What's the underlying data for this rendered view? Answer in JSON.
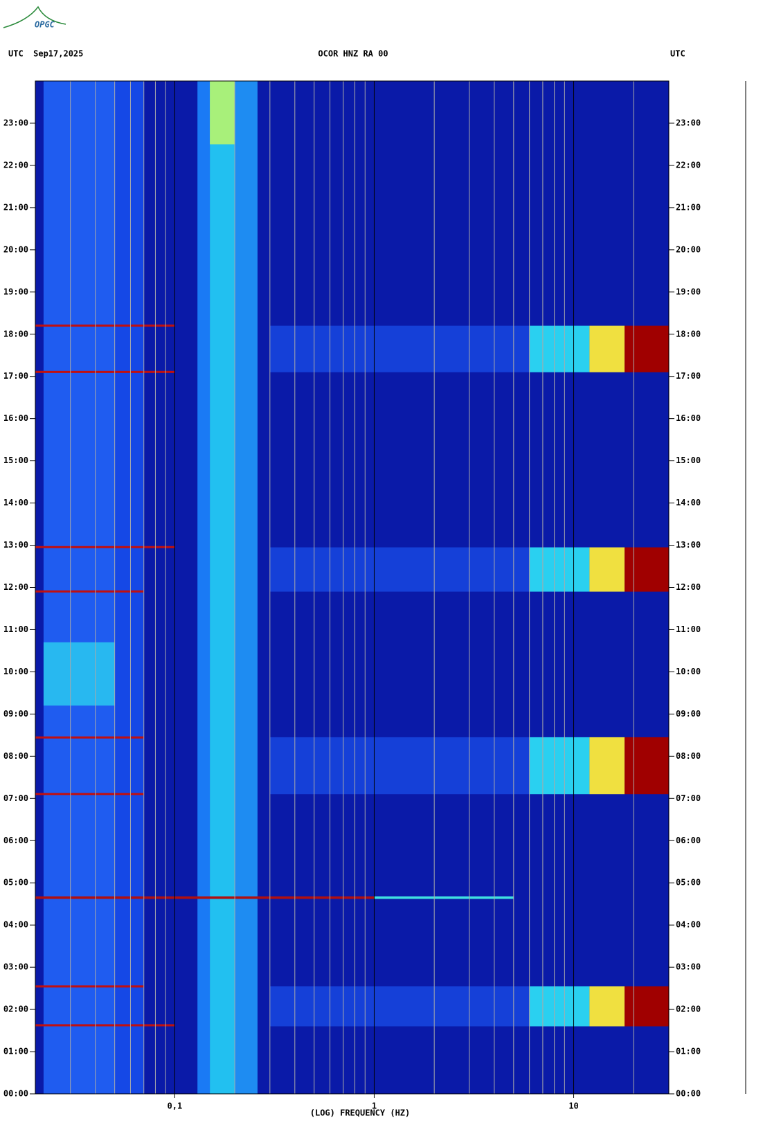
{
  "logo": "OPGC",
  "chart_data": {
    "type": "spectrogram",
    "title": "OCOR HNZ RA 00",
    "left_label": "UTC  Sep17,2025",
    "right_label": "UTC",
    "x_label": "(LOG) FREQUENCY (HZ)",
    "x_log": true,
    "xlim": [
      0.02,
      30
    ],
    "xticks": [
      {
        "value": 0.1,
        "label": "0,1"
      },
      1,
      10
    ],
    "x_minor_ticks": [
      0.03,
      0.04,
      0.05,
      0.06,
      0.07,
      0.08,
      0.09,
      0.2,
      0.3,
      0.4,
      0.5,
      0.6,
      0.7,
      0.8,
      0.9,
      2,
      3,
      4,
      5,
      6,
      7,
      8,
      9,
      20
    ],
    "ylim": [
      0,
      24
    ],
    "yticks": [
      {
        "value": 0,
        "label": "00:00"
      },
      {
        "value": 1,
        "label": "01:00"
      },
      {
        "value": 2,
        "label": "02:00"
      },
      {
        "value": 3,
        "label": "03:00"
      },
      {
        "value": 4,
        "label": "04:00"
      },
      {
        "value": 5,
        "label": "05:00"
      },
      {
        "value": 6,
        "label": "06:00"
      },
      {
        "value": 7,
        "label": "07:00"
      },
      {
        "value": 8,
        "label": "08:00"
      },
      {
        "value": 9,
        "label": "09:00"
      },
      {
        "value": 10,
        "label": "10:00"
      },
      {
        "value": 11,
        "label": "11:00"
      },
      {
        "value": 12,
        "label": "12:00"
      },
      {
        "value": 13,
        "label": "13:00"
      },
      {
        "value": 14,
        "label": "14:00"
      },
      {
        "value": 15,
        "label": "15:00"
      },
      {
        "value": 16,
        "label": "16:00"
      },
      {
        "value": 17,
        "label": "17:00"
      },
      {
        "value": 18,
        "label": "18:00"
      },
      {
        "value": 19,
        "label": "19:00"
      },
      {
        "value": 20,
        "label": "20:00"
      },
      {
        "value": 21,
        "label": "21:00"
      },
      {
        "value": 22,
        "label": "22:00"
      },
      {
        "value": 23,
        "label": "23:00"
      }
    ],
    "background": "#0a1aa8",
    "regions": [
      {
        "x": [
          0.022,
          0.05
        ],
        "y": [
          0,
          24
        ],
        "color": "#1f5cf0"
      },
      {
        "x": [
          0.05,
          0.07
        ],
        "y": [
          0,
          24
        ],
        "color": "#1548e6"
      },
      {
        "x": [
          0.022,
          0.05
        ],
        "y": [
          9.2,
          10.7
        ],
        "color": "#28b8f0"
      },
      {
        "x": [
          0.13,
          0.15
        ],
        "y": [
          0,
          24
        ],
        "color": "#1a7af5"
      },
      {
        "x": [
          0.15,
          0.2
        ],
        "y": [
          0,
          24
        ],
        "color": "#22c0f0"
      },
      {
        "x": [
          0.2,
          0.26
        ],
        "y": [
          0,
          24
        ],
        "color": "#1e8cf2"
      },
      {
        "x": [
          0.15,
          0.2
        ],
        "y": [
          22.5,
          24
        ],
        "color": "#a8f07a"
      },
      {
        "x": [
          0.3,
          6
        ],
        "y": [
          1.6,
          2.55
        ],
        "color": "#1540d8"
      },
      {
        "x": [
          6,
          12
        ],
        "y": [
          1.6,
          2.55
        ],
        "color": "#2ad0f0"
      },
      {
        "x": [
          12,
          18
        ],
        "y": [
          1.6,
          2.55
        ],
        "color": "#f0e040"
      },
      {
        "x": [
          18,
          30
        ],
        "y": [
          1.6,
          2.55
        ],
        "color": "#a00000"
      },
      {
        "x": [
          0.3,
          6
        ],
        "y": [
          7.1,
          8.45
        ],
        "color": "#1540d8"
      },
      {
        "x": [
          6,
          12
        ],
        "y": [
          7.1,
          8.45
        ],
        "color": "#2ad0f0"
      },
      {
        "x": [
          12,
          18
        ],
        "y": [
          7.1,
          8.45
        ],
        "color": "#f0e040"
      },
      {
        "x": [
          18,
          30
        ],
        "y": [
          7.1,
          8.45
        ],
        "color": "#a00000"
      },
      {
        "x": [
          0.3,
          6
        ],
        "y": [
          11.9,
          12.95
        ],
        "color": "#1540d8"
      },
      {
        "x": [
          6,
          12
        ],
        "y": [
          11.9,
          12.95
        ],
        "color": "#2ad0f0"
      },
      {
        "x": [
          12,
          18
        ],
        "y": [
          11.9,
          12.95
        ],
        "color": "#f0e040"
      },
      {
        "x": [
          18,
          30
        ],
        "y": [
          11.9,
          12.95
        ],
        "color": "#a00000"
      },
      {
        "x": [
          0.3,
          6
        ],
        "y": [
          17.1,
          18.2
        ],
        "color": "#1540d8"
      },
      {
        "x": [
          6,
          12
        ],
        "y": [
          17.1,
          18.2
        ],
        "color": "#2ad0f0"
      },
      {
        "x": [
          12,
          18
        ],
        "y": [
          17.1,
          18.2
        ],
        "color": "#f0e040"
      },
      {
        "x": [
          18,
          30
        ],
        "y": [
          17.1,
          18.2
        ],
        "color": "#a00000"
      },
      {
        "x": [
          0.02,
          0.1
        ],
        "y": [
          1.6,
          1.65
        ],
        "color": "#c01010"
      },
      {
        "x": [
          0.02,
          0.07
        ],
        "y": [
          2.52,
          2.57
        ],
        "color": "#c01010"
      },
      {
        "x": [
          0.02,
          0.07
        ],
        "y": [
          7.08,
          7.13
        ],
        "color": "#c01010"
      },
      {
        "x": [
          0.02,
          0.07
        ],
        "y": [
          8.42,
          8.47
        ],
        "color": "#c01010"
      },
      {
        "x": [
          0.02,
          0.07
        ],
        "y": [
          11.88,
          11.93
        ],
        "color": "#c01010"
      },
      {
        "x": [
          0.02,
          0.1
        ],
        "y": [
          12.93,
          12.98
        ],
        "color": "#c01010"
      },
      {
        "x": [
          0.02,
          0.1
        ],
        "y": [
          17.08,
          17.13
        ],
        "color": "#c01010"
      },
      {
        "x": [
          0.02,
          0.1
        ],
        "y": [
          18.18,
          18.23
        ],
        "color": "#c01010"
      },
      {
        "x": [
          0.02,
          1
        ],
        "y": [
          4.62,
          4.68
        ],
        "color": "#b01010"
      },
      {
        "x": [
          1,
          5
        ],
        "y": [
          4.62,
          4.68
        ],
        "color": "#40e0e0"
      }
    ]
  }
}
